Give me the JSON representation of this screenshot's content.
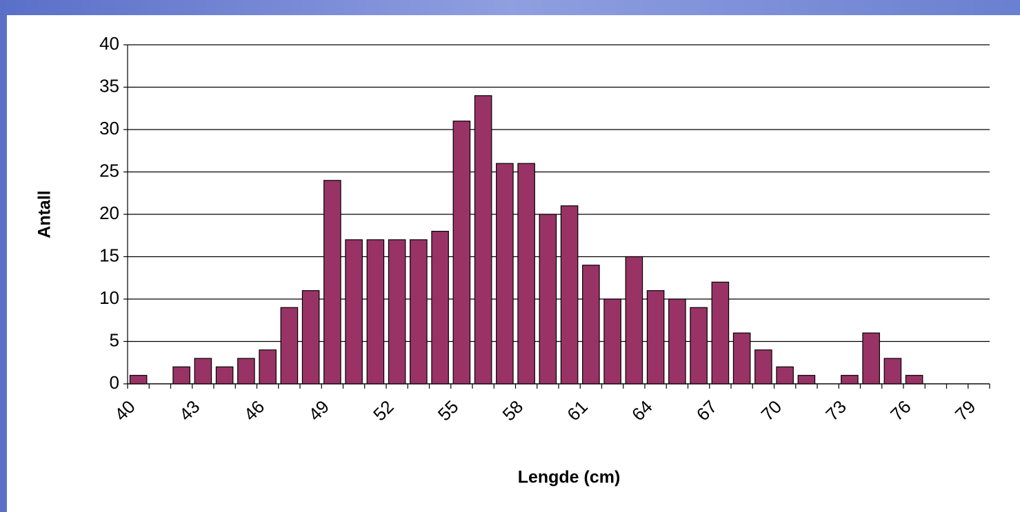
{
  "chart_data": {
    "type": "bar",
    "x_label": "Lengde (cm)",
    "y_label": "Antall",
    "categories": [
      "40",
      null,
      null,
      "43",
      null,
      null,
      "46",
      null,
      null,
      "49",
      null,
      null,
      "52",
      null,
      null,
      "55",
      null,
      null,
      "58",
      null,
      null,
      "61",
      null,
      null,
      "64",
      null,
      null,
      "67",
      null,
      null,
      "70",
      null,
      null,
      "73",
      null,
      null,
      "76",
      null,
      null,
      "79"
    ],
    "values": [
      1,
      0,
      2,
      3,
      2,
      3,
      4,
      9,
      11,
      24,
      17,
      17,
      17,
      17,
      18,
      31,
      34,
      26,
      26,
      20,
      21,
      14,
      10,
      15,
      11,
      10,
      9,
      12,
      6,
      4,
      2,
      1,
      0,
      1,
      6,
      3,
      1,
      0,
      0,
      0
    ],
    "color": "#993366",
    "ylim": [
      0,
      40
    ],
    "yticks": [
      0,
      5,
      10,
      15,
      20,
      25,
      30,
      35,
      40
    ],
    "grid": true
  }
}
